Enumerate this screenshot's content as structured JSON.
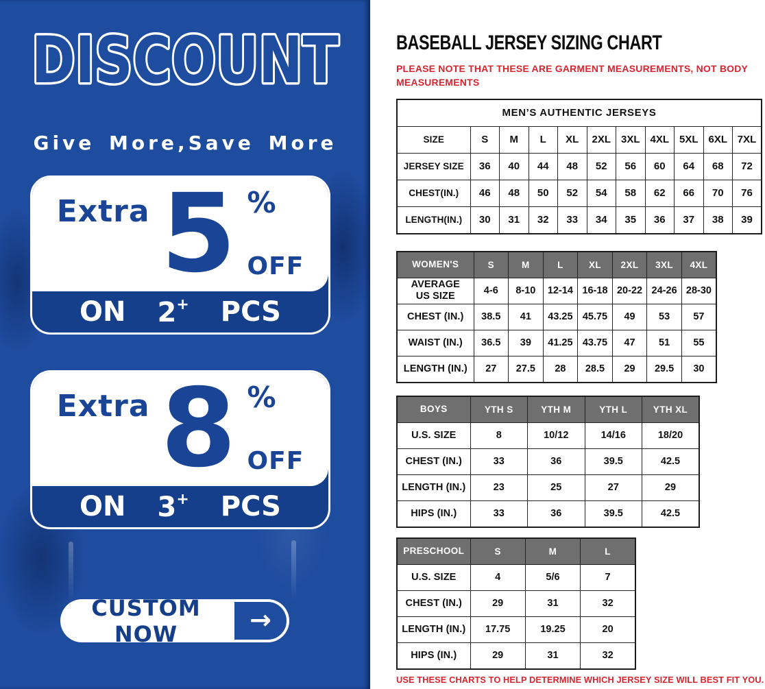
{
  "colors": {
    "panel_blue": "#1e4c9f",
    "band_blue": "#153f8a",
    "text_blue": "#1a4596",
    "header_gray": "#6f6f6f",
    "note_red": "#d7242e",
    "border_dark": "#1c1c1c"
  },
  "promo": {
    "title": "DISCOUNT",
    "tagline": "Give More,Save More",
    "offers": [
      {
        "prefix": "Extra",
        "percent": "5",
        "percent_sign": "%",
        "off_label": "OFF",
        "on_label": "ON",
        "qty": "2",
        "plus": "+",
        "pcs_label": "PCS"
      },
      {
        "prefix": "Extra",
        "percent": "8",
        "percent_sign": "%",
        "off_label": "OFF",
        "on_label": "ON",
        "qty": "3",
        "plus": "+",
        "pcs_label": "PCS"
      }
    ],
    "cta_label": "CUSTOM NOW",
    "cta_arrow": "→"
  },
  "chart": {
    "title": "BASEBALL JERSEY SIZING CHART",
    "note_top": "PLEASE NOTE THAT THESE ARE GARMENT MEASUREMENTS, NOT BODY MEASUREMENTS",
    "note_bottom": "USE THESE CHARTS TO HELP DETERMINE WHICH JERSEY SIZE WILL BEST FIT YOU.",
    "tables": [
      {
        "id": "mens",
        "banner": "MEN’S AUTHENTIC JERSEYS",
        "header_style": "plain",
        "header": [
          "SIZE",
          "S",
          "M",
          "L",
          "XL",
          "2XL",
          "3XL",
          "4XL",
          "5XL",
          "6XL",
          "7XL"
        ],
        "rows": [
          [
            "JERSEY SIZE",
            "36",
            "40",
            "44",
            "48",
            "52",
            "56",
            "60",
            "64",
            "68",
            "72"
          ],
          [
            "CHEST(IN.)",
            "46",
            "48",
            "50",
            "52",
            "54",
            "58",
            "62",
            "66",
            "70",
            "76"
          ],
          [
            "LENGTH(IN.)",
            "30",
            "31",
            "32",
            "33",
            "34",
            "35",
            "36",
            "37",
            "38",
            "39"
          ]
        ]
      },
      {
        "id": "womens",
        "header_style": "gray",
        "header": [
          "WOMEN'S",
          "S",
          "M",
          "L",
          "XL",
          "2XL",
          "3XL",
          "4XL"
        ],
        "rows": [
          [
            "AVERAGE\nUS SIZE",
            "4-6",
            "8-10",
            "12-14",
            "16-18",
            "20-22",
            "24-26",
            "28-30"
          ],
          [
            "CHEST (IN.)",
            "38.5",
            "41",
            "43.25",
            "45.75",
            "49",
            "53",
            "57"
          ],
          [
            "WAIST (IN.)",
            "36.5",
            "39",
            "41.25",
            "43.75",
            "47",
            "51",
            "55"
          ],
          [
            "LENGTH (IN.)",
            "27",
            "27.5",
            "28",
            "28.5",
            "29",
            "29.5",
            "30"
          ]
        ]
      },
      {
        "id": "boys",
        "header_style": "gray",
        "header": [
          "BOYS",
          "YTH S",
          "YTH M",
          "YTH L",
          "YTH XL"
        ],
        "rows": [
          [
            "U.S. SIZE",
            "8",
            "10/12",
            "14/16",
            "18/20"
          ],
          [
            "CHEST (IN.)",
            "33",
            "36",
            "39.5",
            "42.5"
          ],
          [
            "LENGTH (IN.)",
            "23",
            "25",
            "27",
            "29"
          ],
          [
            "HIPS (IN.)",
            "33",
            "36",
            "39.5",
            "42.5"
          ]
        ]
      },
      {
        "id": "preschool",
        "header_style": "gray",
        "header": [
          "PRESCHOOL",
          "S",
          "M",
          "L"
        ],
        "rows": [
          [
            "U.S. SIZE",
            "4",
            "5/6",
            "7"
          ],
          [
            "CHEST (IN.)",
            "29",
            "31",
            "32"
          ],
          [
            "LENGTH (IN.)",
            "17.75",
            "19.25",
            "20"
          ],
          [
            "HIPS (IN.)",
            "29",
            "31",
            "32"
          ]
        ]
      }
    ]
  }
}
